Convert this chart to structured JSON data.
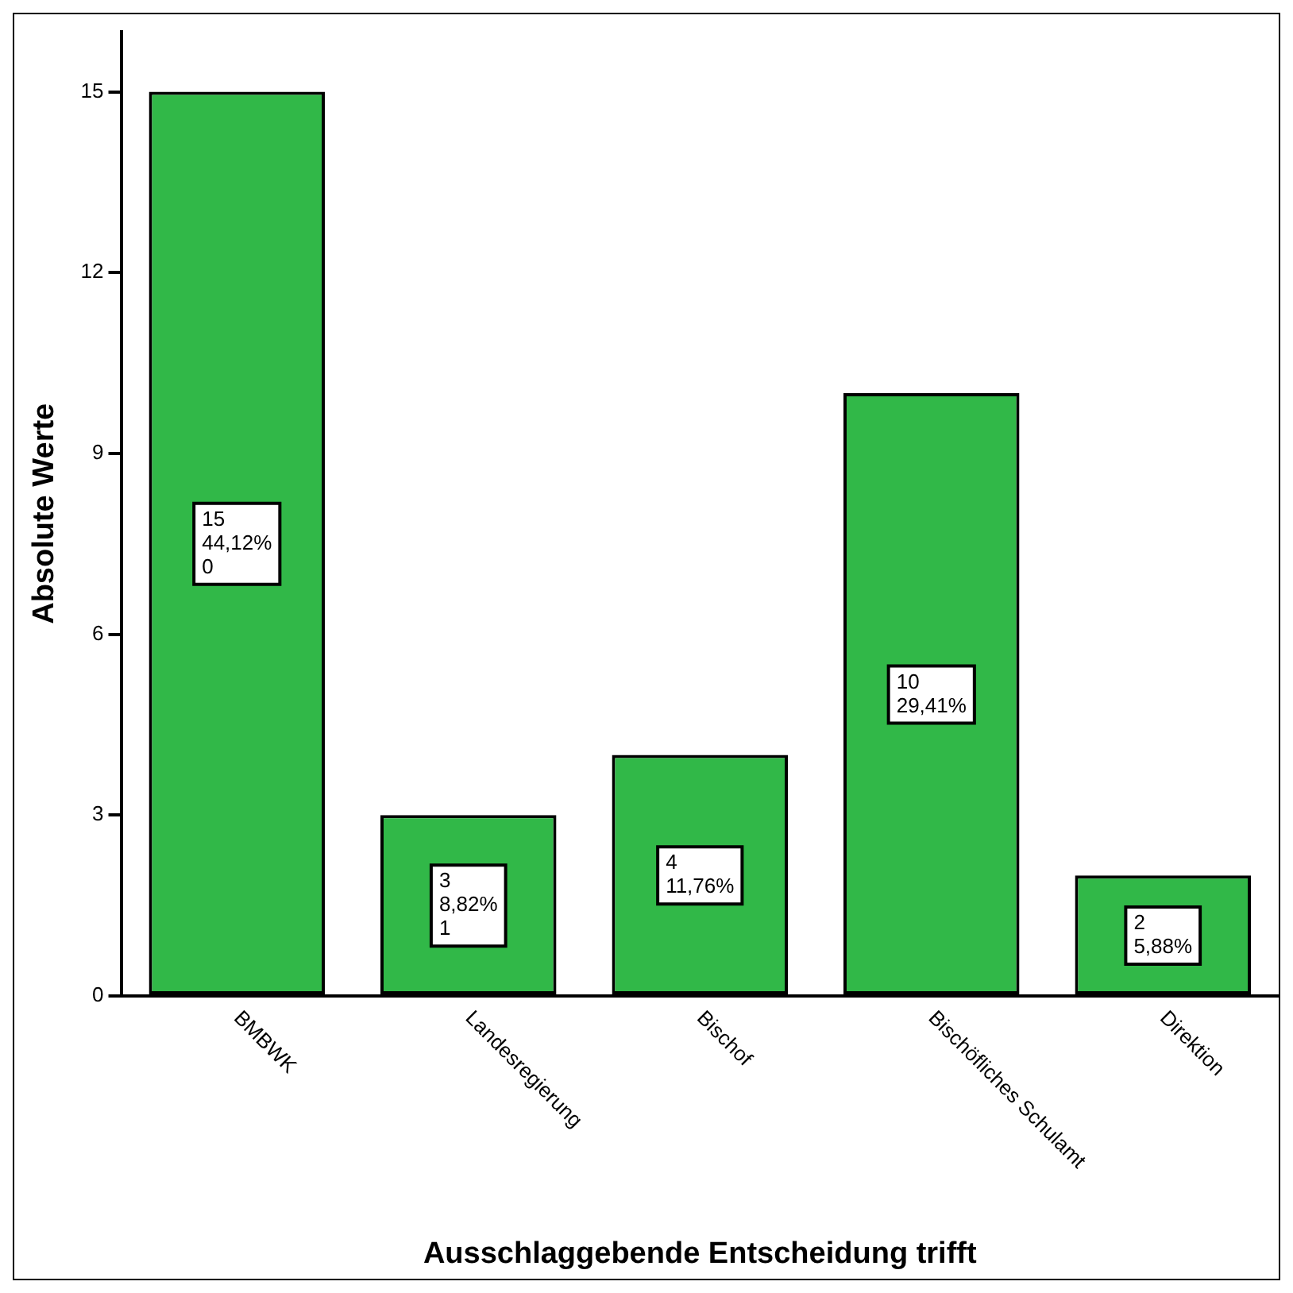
{
  "chart_data": {
    "type": "bar",
    "xlabel": "Ausschlaggebende Entscheidung trifft",
    "ylabel": "Absolute Werte",
    "categories": [
      "BMBWK",
      "Landesregierung",
      "Bischof",
      "Bischöfliches Schulamt",
      "Direktion"
    ],
    "values": [
      15,
      3,
      4,
      10,
      2
    ],
    "color": "#31b848",
    "value_labels": [
      "15\n44,12%\n0",
      "3\n8,82%\n1",
      "4\n11,76%",
      "10\n29,41%",
      "2\n5,88%"
    ],
    "ylim": [
      0,
      16
    ],
    "yticks": [
      0,
      3,
      6,
      9,
      12,
      15
    ],
    "grid": false,
    "legend": false
  }
}
